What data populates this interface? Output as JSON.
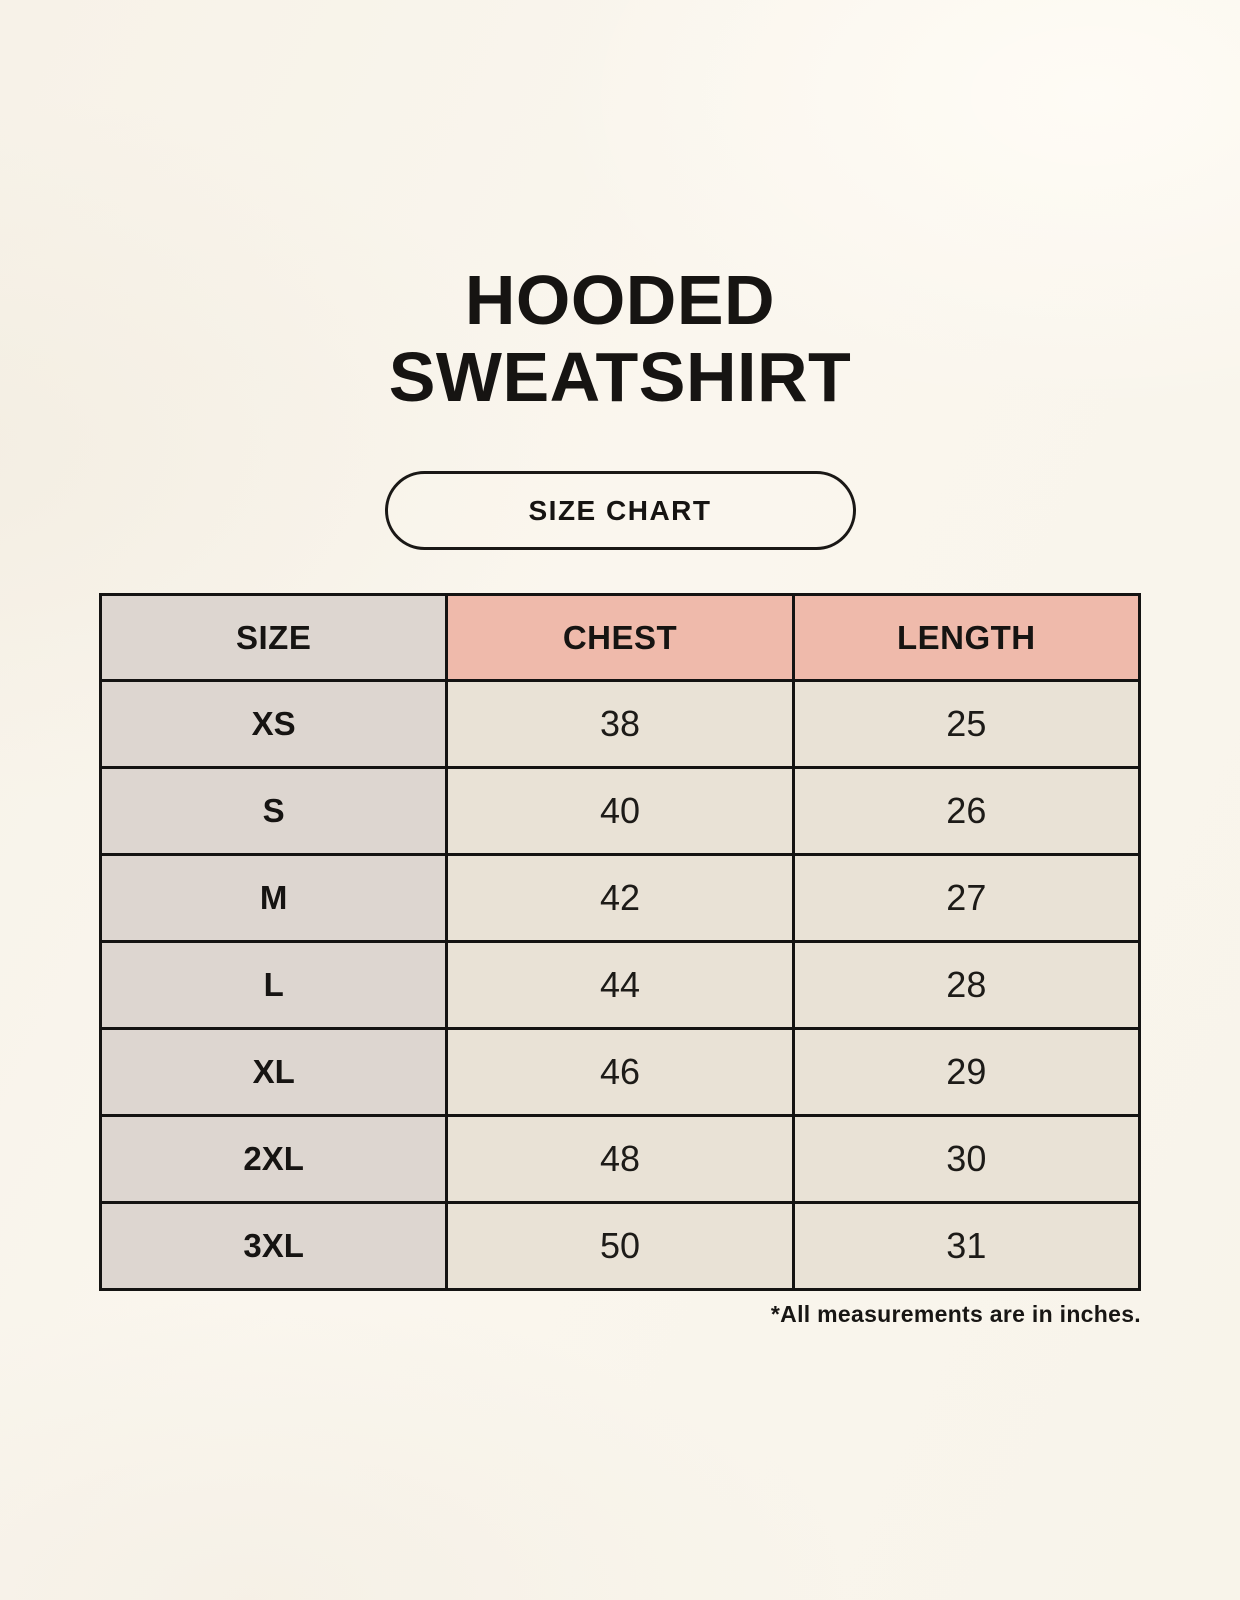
{
  "page": {
    "title_lines": [
      "HOODED",
      "SWEATSHIRT"
    ],
    "badge_label": "SIZE CHART",
    "footnote": "*All measurements are in inches."
  },
  "colors": {
    "background": "#f9f5ec",
    "text": "#161412",
    "header_accent": "#efbaab",
    "size_column": "#ddd6d0",
    "data_cell": "#e9e2d6",
    "table_border": "#141312"
  },
  "table": {
    "columns": [
      {
        "label": "SIZE"
      },
      {
        "label": "CHEST"
      },
      {
        "label": "LENGTH"
      }
    ],
    "rows": [
      {
        "size": "XS",
        "chest": "38",
        "length": "25"
      },
      {
        "size": "S",
        "chest": "40",
        "length": "26"
      },
      {
        "size": "M",
        "chest": "42",
        "length": "27"
      },
      {
        "size": "L",
        "chest": "44",
        "length": "28"
      },
      {
        "size": "XL",
        "chest": "46",
        "length": "29"
      },
      {
        "size": "2XL",
        "chest": "48",
        "length": "30"
      },
      {
        "size": "3XL",
        "chest": "50",
        "length": "31"
      }
    ]
  },
  "chart_data": {
    "type": "table",
    "title": "HOODED SWEATSHIRT",
    "subtitle": "SIZE CHART",
    "columns": [
      "SIZE",
      "CHEST",
      "LENGTH"
    ],
    "rows": [
      [
        "XS",
        38,
        25
      ],
      [
        "S",
        40,
        26
      ],
      [
        "M",
        42,
        27
      ],
      [
        "L",
        44,
        28
      ],
      [
        "XL",
        46,
        29
      ],
      [
        "2XL",
        48,
        30
      ],
      [
        "3XL",
        50,
        31
      ]
    ],
    "units": "inches",
    "note": "*All measurements are in inches."
  }
}
